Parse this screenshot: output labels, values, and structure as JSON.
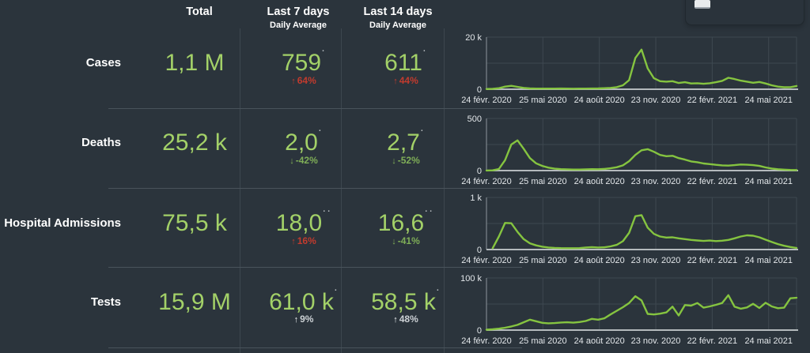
{
  "theme": {
    "background": "#2b343c",
    "text_white": "#ffffff",
    "value_green": "#a3d168",
    "line_green": "#85c440",
    "trend_red": "#c23b2e",
    "trend_green": "#7fae57",
    "trend_neutral": "#ccd1d5",
    "axis_label": "#e3e7ea",
    "grid": "#3e4850",
    "axis_line": "#b4babd",
    "axis_left": "#8d959b",
    "separator": "#49535b"
  },
  "icons": {
    "up_arrow": "↑",
    "down_arrow": "↓",
    "toolbar_button": "▭"
  },
  "table": {
    "headers": {
      "total": "Total",
      "last7_title": "Last 7 days",
      "last7_sub": "Daily Average",
      "last14_title": "Last 14 days",
      "last14_sub": "Daily Average"
    },
    "rows": [
      {
        "label": "Cases",
        "total": "1,1 M",
        "d7": {
          "value": "759",
          "marker": "·",
          "pct": "64%",
          "dir": "up",
          "trend": "bad"
        },
        "d14": {
          "value": "611",
          "marker": "·",
          "pct": "44%",
          "dir": "up",
          "trend": "bad"
        }
      },
      {
        "label": "Deaths",
        "total": "25,2 k",
        "d7": {
          "value": "2,0",
          "marker": "·",
          "pct": "-42%",
          "dir": "down",
          "trend": "good"
        },
        "d14": {
          "value": "2,7",
          "marker": "·",
          "pct": "-52%",
          "dir": "down",
          "trend": "good"
        }
      },
      {
        "label": "Hospital Admissions",
        "total": "75,5 k",
        "d7": {
          "value": "18,0",
          "marker": "··",
          "pct": "16%",
          "dir": "up",
          "trend": "bad"
        },
        "d14": {
          "value": "16,6",
          "marker": "··",
          "pct": "-41%",
          "dir": "down",
          "trend": "good"
        }
      },
      {
        "label": "Tests",
        "total": "15,9 M",
        "d7": {
          "value": "61,0 k",
          "marker": "·",
          "pct": "9%",
          "dir": "up",
          "trend": "neutral"
        },
        "d14": {
          "value": "58,5 k",
          "marker": "·",
          "pct": "48%",
          "dir": "up",
          "trend": "neutral"
        }
      }
    ]
  },
  "chart_data": [
    {
      "name": "Cases daily trend",
      "type": "line",
      "ylim": [
        0,
        20000
      ],
      "ytick_labels": [
        "20 k",
        "0"
      ],
      "x_tick_labels": [
        "24 févr. 2020",
        "25 mai 2020",
        "24 août 2020",
        "23 nov. 2020",
        "22 févr. 2021",
        "24 mai 2021"
      ],
      "x_tick_days": [
        0,
        91,
        182,
        273,
        364,
        455
      ],
      "total_days": 500,
      "point_interval_days": 10,
      "values": [
        100,
        150,
        400,
        1000,
        1300,
        900,
        500,
        300,
        250,
        250,
        250,
        250,
        280,
        250,
        220,
        250,
        230,
        260,
        300,
        380,
        500,
        800,
        1500,
        3500,
        12000,
        15200,
        8000,
        4200,
        3100,
        2900,
        3100,
        2400,
        2700,
        2200,
        2300,
        2100,
        2300,
        2700,
        3200,
        4400,
        3900,
        3300,
        2900,
        2500,
        2800,
        2200,
        1500,
        1000,
        750,
        800,
        1250
      ]
    },
    {
      "name": "Deaths daily trend",
      "type": "line",
      "ylim": [
        0,
        500
      ],
      "ytick_labels": [
        "500",
        "0"
      ],
      "x_tick_labels": [
        "24 févr. 2020",
        "25 mai 2020",
        "24 août 2020",
        "23 nov. 2020",
        "22 févr. 2021",
        "24 mai 2021"
      ],
      "x_tick_days": [
        0,
        91,
        182,
        273,
        364,
        455
      ],
      "total_days": 500,
      "point_interval_days": 10,
      "values": [
        1,
        2,
        15,
        100,
        250,
        290,
        210,
        120,
        70,
        45,
        28,
        18,
        14,
        12,
        10,
        10,
        12,
        14,
        13,
        16,
        22,
        32,
        50,
        90,
        150,
        195,
        205,
        180,
        150,
        138,
        142,
        120,
        105,
        88,
        80,
        68,
        62,
        55,
        50,
        48,
        52,
        58,
        56,
        52,
        45,
        30,
        20,
        13,
        9,
        6,
        5
      ]
    },
    {
      "name": "Hospital Admissions daily trend",
      "type": "line",
      "ylim": [
        0,
        1000
      ],
      "ytick_labels": [
        "1 k",
        "0"
      ],
      "x_tick_labels": [
        "24 févr. 2020",
        "25 mai 2020",
        "24 août 2020",
        "23 nov. 2020",
        "22 févr. 2021",
        "24 mai 2021"
      ],
      "x_tick_days": [
        0,
        91,
        182,
        273,
        364,
        455
      ],
      "total_days": 500,
      "point_interval_days": 10,
      "values": [
        null,
        25,
        250,
        510,
        505,
        340,
        200,
        120,
        80,
        55,
        40,
        32,
        28,
        25,
        25,
        28,
        38,
        45,
        40,
        42,
        60,
        90,
        160,
        320,
        640,
        660,
        420,
        300,
        250,
        230,
        235,
        215,
        200,
        185,
        175,
        165,
        172,
        162,
        170,
        185,
        215,
        250,
        272,
        265,
        235,
        190,
        145,
        105,
        72,
        48,
        30
      ]
    },
    {
      "name": "Tests daily trend",
      "type": "line",
      "ylim": [
        0,
        100000
      ],
      "ytick_labels": [
        "100 k",
        "0"
      ],
      "x_tick_labels": [
        "24 févr. 2020",
        "25 mai 2020",
        "24 août 2020",
        "23 nov. 2020",
        "22 févr. 2021",
        "24 mai 2021"
      ],
      "x_tick_days": [
        0,
        91,
        182,
        273,
        364,
        455
      ],
      "total_days": 500,
      "point_interval_days": 10,
      "values": [
        800,
        1500,
        2800,
        4500,
        7000,
        10000,
        15000,
        20000,
        17000,
        14000,
        13000,
        13500,
        14500,
        15000,
        14200,
        15500,
        17500,
        21500,
        20000,
        22500,
        30000,
        37000,
        44000,
        52000,
        65000,
        57000,
        31000,
        30000,
        31500,
        34000,
        45000,
        28000,
        48000,
        47000,
        52000,
        43000,
        45500,
        48500,
        52000,
        67000,
        45000,
        41000,
        43500,
        50500,
        42500,
        52500,
        45500,
        42000,
        43000,
        61000,
        62000
      ]
    }
  ]
}
